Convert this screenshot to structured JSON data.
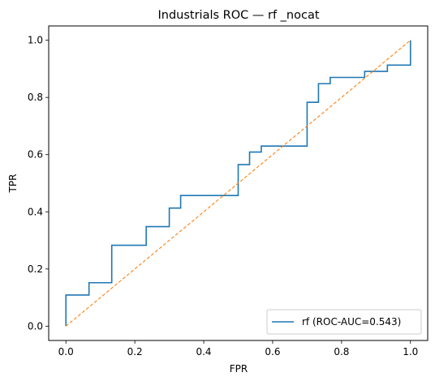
{
  "chart_data": {
    "type": "line",
    "title": "Industrials ROC — rf _nocat",
    "xlabel": "FPR",
    "ylabel": "TPR",
    "xlim": [
      -0.05,
      1.05
    ],
    "ylim": [
      -0.05,
      1.05
    ],
    "xticks": [
      0.0,
      0.2,
      0.4,
      0.6,
      0.8,
      1.0
    ],
    "yticks": [
      0.0,
      0.2,
      0.4,
      0.6,
      0.8,
      1.0
    ],
    "xtick_labels": [
      "0.0",
      "0.2",
      "0.4",
      "0.6",
      "0.8",
      "1.0"
    ],
    "ytick_labels": [
      "0.0",
      "0.2",
      "0.4",
      "0.6",
      "0.8",
      "1.0"
    ],
    "grid": false,
    "legend_position": "lower-right",
    "series": [
      {
        "name": "rf (ROC-AUC=0.543)",
        "color": "#1f77b4",
        "style": "solid",
        "x": [
          0.0,
          0.0,
          0.067,
          0.067,
          0.133,
          0.133,
          0.233,
          0.233,
          0.3,
          0.3,
          0.333,
          0.333,
          0.5,
          0.5,
          0.533,
          0.533,
          0.567,
          0.567,
          0.7,
          0.7,
          0.733,
          0.733,
          0.767,
          0.767,
          0.867,
          0.867,
          0.933,
          0.933,
          1.0,
          1.0
        ],
        "y": [
          0.0,
          0.109,
          0.109,
          0.152,
          0.152,
          0.283,
          0.283,
          0.348,
          0.348,
          0.413,
          0.413,
          0.457,
          0.457,
          0.565,
          0.565,
          0.609,
          0.609,
          0.63,
          0.63,
          0.783,
          0.783,
          0.848,
          0.848,
          0.87,
          0.87,
          0.891,
          0.891,
          0.913,
          0.913,
          1.0
        ]
      },
      {
        "color": "#ff7f0e",
        "style": "dashed",
        "x": [
          0.0,
          1.0
        ],
        "y": [
          0.0,
          1.0
        ]
      }
    ]
  }
}
